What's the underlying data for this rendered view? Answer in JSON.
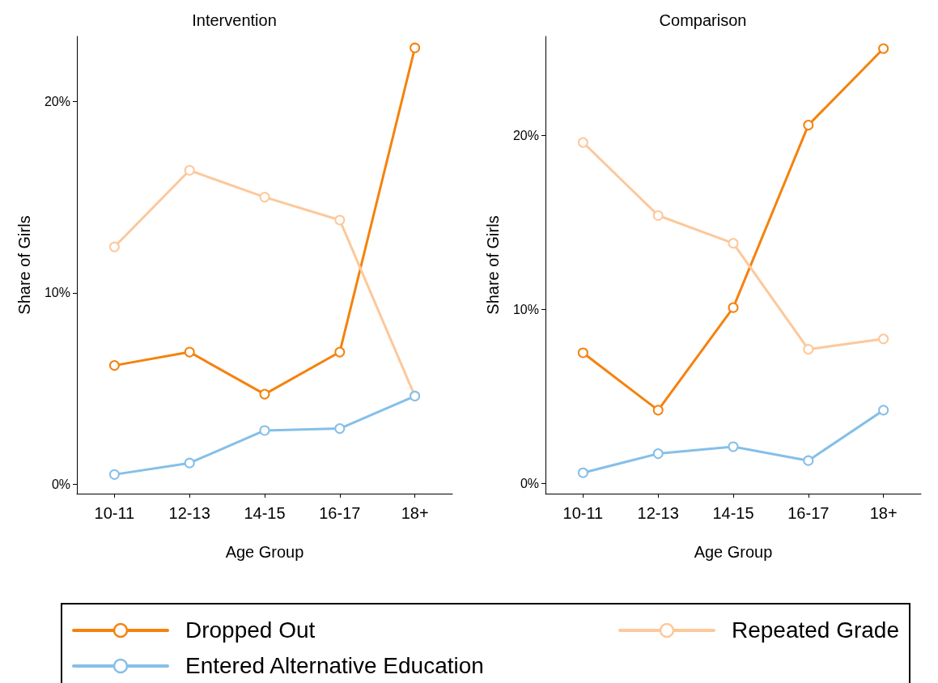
{
  "chart_data": [
    {
      "type": "line",
      "title": "Intervention",
      "xlabel": "Age Group",
      "ylabel": "Share of Girls",
      "categories": [
        "10-11",
        "12-13",
        "14-15",
        "16-17",
        "18+"
      ],
      "ylim": [
        -0.5,
        23.4
      ],
      "yticks": [
        {
          "value": 0,
          "label": "0%"
        },
        {
          "value": 10,
          "label": "10%"
        },
        {
          "value": 20,
          "label": "20%"
        }
      ],
      "marker": "circle",
      "legend": "bottom",
      "series": [
        {
          "name": "Dropped Out",
          "color": "#f5820d",
          "values": [
            6.2,
            6.9,
            4.7,
            6.9,
            22.8
          ]
        },
        {
          "name": "Repeated Grade",
          "color": "#fdc89b",
          "values": [
            12.4,
            16.4,
            15.0,
            13.8,
            4.6
          ]
        },
        {
          "name": "Entered Alternative Education",
          "color": "#85bfe8",
          "values": [
            0.5,
            1.1,
            2.8,
            2.9,
            4.6
          ]
        }
      ]
    },
    {
      "type": "line",
      "title": "Comparison",
      "xlabel": "Age Group",
      "ylabel": "Share of Girls",
      "categories": [
        "10-11",
        "12-13",
        "14-15",
        "16-17",
        "18+"
      ],
      "ylim": [
        -0.6,
        25.7
      ],
      "yticks": [
        {
          "value": 0,
          "label": "0%"
        },
        {
          "value": 10,
          "label": "10%"
        },
        {
          "value": 20,
          "label": "20%"
        }
      ],
      "marker": "circle",
      "series": [
        {
          "color": "#f5820d",
          "values": [
            7.5,
            4.2,
            10.1,
            20.6,
            25.0
          ]
        },
        {
          "color": "#fdc89b",
          "values": [
            19.6,
            15.4,
            13.8,
            7.7,
            8.3
          ]
        },
        {
          "color": "#85bfe8",
          "values": [
            0.6,
            1.7,
            2.1,
            1.3,
            4.2
          ]
        }
      ]
    }
  ]
}
